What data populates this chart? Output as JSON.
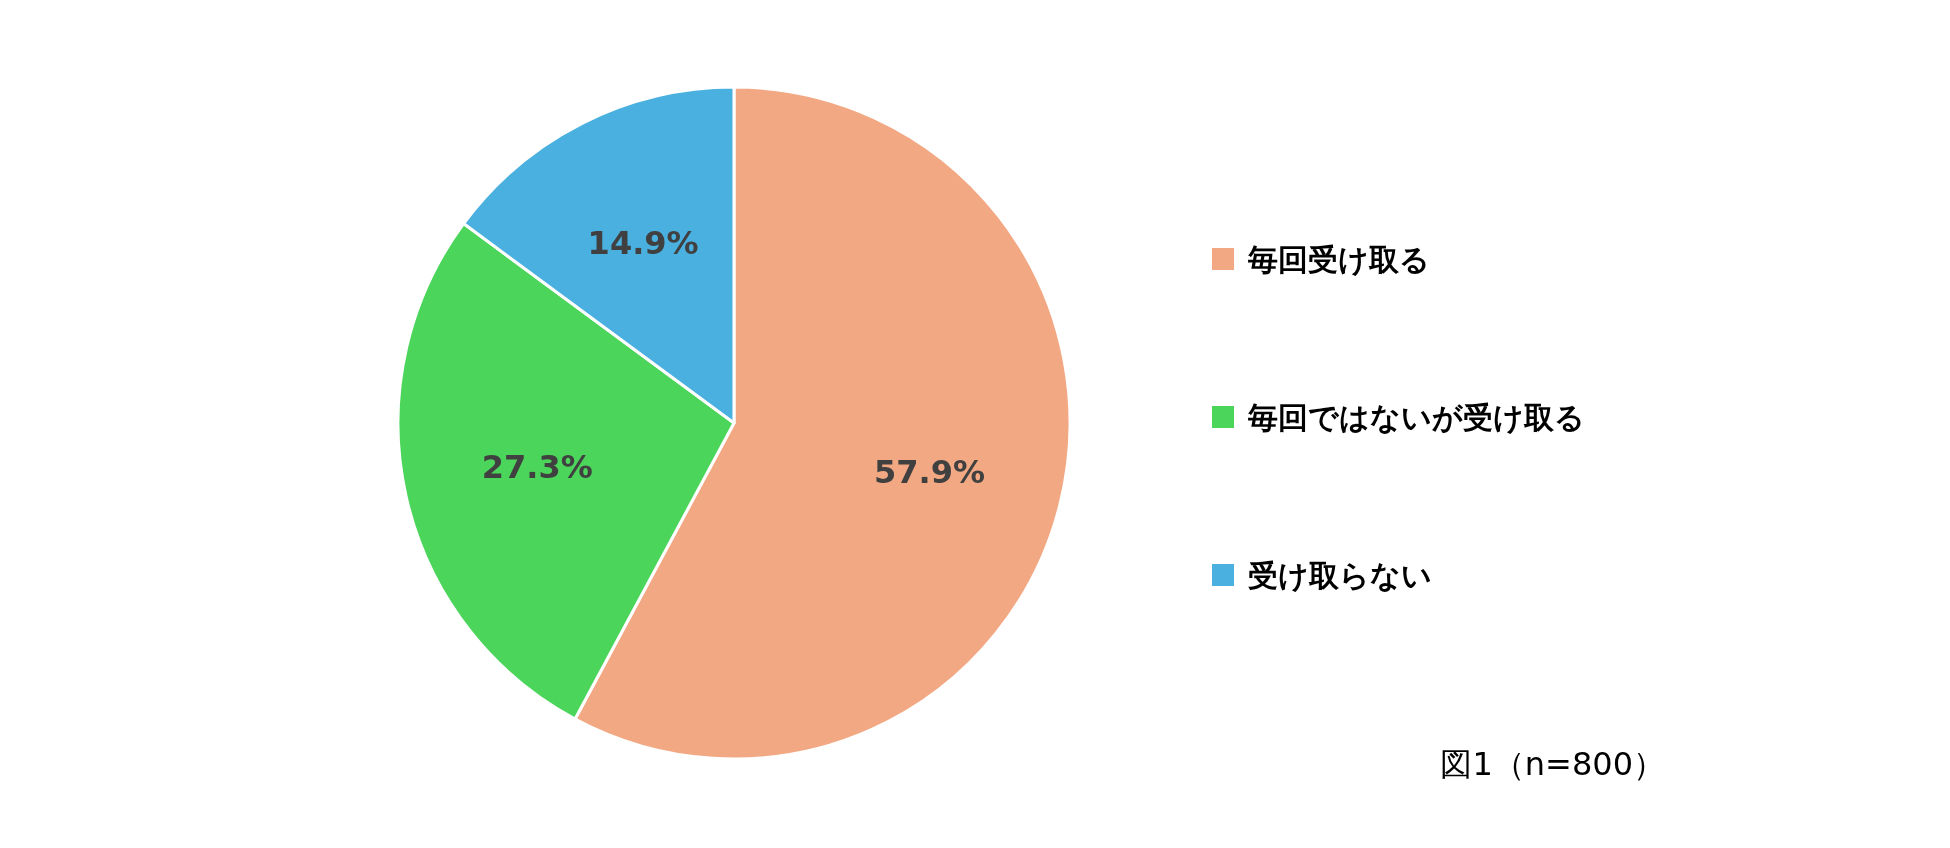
{
  "chart_data": {
    "type": "pie",
    "categories": [
      "毎回受け取る",
      "毎回ではないが受け取る",
      "受け取らない"
    ],
    "values": [
      57.9,
      27.3,
      14.9
    ],
    "colors": [
      "#f2a882",
      "#4bd55b",
      "#4ab0e0"
    ],
    "value_labels": [
      "57.9%",
      "27.3%",
      "14.9%"
    ],
    "legend": "right",
    "annotations": [
      "図1（n=800）"
    ]
  }
}
